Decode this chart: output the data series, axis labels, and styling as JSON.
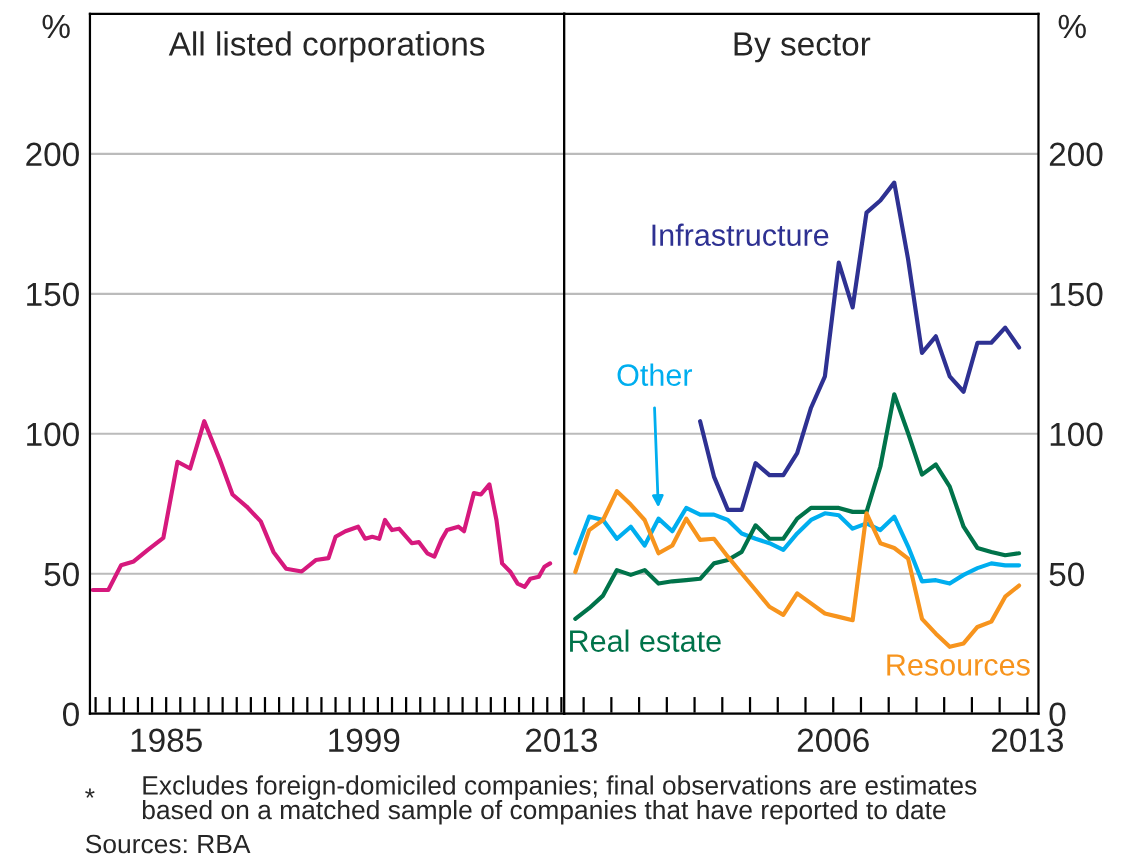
{
  "chart_data": [
    {
      "type": "line",
      "title": "All listed corporations",
      "ylabel": "%",
      "xlim": [
        1979.6,
        2013.2
      ],
      "ylim": [
        0,
        250
      ],
      "yticks": [
        0,
        50,
        100,
        150,
        200
      ],
      "xticks": [
        {
          "value": 1980,
          "label": null
        },
        {
          "value": 1981,
          "label": null
        },
        {
          "value": 1982,
          "label": null
        },
        {
          "value": 1983,
          "label": null
        },
        {
          "value": 1984,
          "label": null
        },
        {
          "value": 1985,
          "label": "1985"
        },
        {
          "value": 1986,
          "label": null
        },
        {
          "value": 1987,
          "label": null
        },
        {
          "value": 1988,
          "label": null
        },
        {
          "value": 1989,
          "label": null
        },
        {
          "value": 1990,
          "label": null
        },
        {
          "value": 1991,
          "label": null
        },
        {
          "value": 1992,
          "label": null
        },
        {
          "value": 1993,
          "label": null
        },
        {
          "value": 1994,
          "label": null
        },
        {
          "value": 1995,
          "label": null
        },
        {
          "value": 1996,
          "label": null
        },
        {
          "value": 1997,
          "label": null
        },
        {
          "value": 1998,
          "label": null
        },
        {
          "value": 1999,
          "label": "1999"
        },
        {
          "value": 2000,
          "label": null
        },
        {
          "value": 2001,
          "label": null
        },
        {
          "value": 2002,
          "label": null
        },
        {
          "value": 2003,
          "label": null
        },
        {
          "value": 2004,
          "label": null
        },
        {
          "value": 2005,
          "label": null
        },
        {
          "value": 2006,
          "label": null
        },
        {
          "value": 2007,
          "label": null
        },
        {
          "value": 2008,
          "label": null
        },
        {
          "value": 2009,
          "label": null
        },
        {
          "value": 2010,
          "label": null
        },
        {
          "value": 2011,
          "label": null
        },
        {
          "value": 2012,
          "label": null
        },
        {
          "value": 2013,
          "label": "2013"
        }
      ],
      "grid": "y",
      "legend": false,
      "annotations": [
        "*\tExcludes foreign-domiciled companies; final observations are estimates\n\tbased on a matched sample of companies that have reported to date",
        "Sources: RBA"
      ],
      "series": [
        {
          "color": "#d6197d",
          "x": [
            1979.8,
            1980.9,
            1981.8,
            1982.7,
            1983.7,
            1984.8,
            1985.8,
            1986.7,
            1987.7,
            1988.8,
            1989.7,
            1990.7,
            1991.7,
            1992.6,
            1993.5,
            1994.6,
            1995.6,
            1996.5,
            1997.0,
            1997.7,
            1998.6,
            1999.1,
            1999.6,
            2000.1,
            2000.5,
            2001.0,
            2001.5,
            2002.4,
            2002.9,
            2003.5,
            2004.0,
            2004.5,
            2004.9,
            2005.7,
            2006.1,
            2006.8,
            2007.3,
            2007.9,
            2008.4,
            2008.8,
            2009.4,
            2009.9,
            2010.4,
            2010.8,
            2011.4,
            2011.8,
            2012.2
          ],
          "values": [
            44.2,
            44.2,
            53,
            54.4,
            58.5,
            62.8,
            90,
            87.6,
            104.5,
            90.7,
            78.3,
            74,
            68.7,
            57.8,
            51.8,
            50.8,
            54.9,
            55.6,
            63.2,
            65.2,
            66.8,
            62.5,
            63.2,
            62.5,
            69.2,
            65.6,
            66.1,
            60.9,
            61.3,
            57.3,
            56.1,
            62.1,
            65.6,
            66.8,
            65.2,
            78.8,
            78.3,
            81.9,
            69.2,
            53.7,
            50.6,
            46.5,
            45.3,
            48.2,
            48.9,
            52.5,
            53.7
          ]
        }
      ]
    },
    {
      "type": "line",
      "title": "By sector",
      "ylabel": "%",
      "xlim": [
        1996.3,
        2013.4
      ],
      "ylim": [
        0,
        250
      ],
      "yticks": [
        0,
        50,
        100,
        150,
        200
      ],
      "xticks": [
        {
          "value": 1997,
          "label": null
        },
        {
          "value": 1998,
          "label": null
        },
        {
          "value": 1999,
          "label": null
        },
        {
          "value": 2000,
          "label": null
        },
        {
          "value": 2001,
          "label": null
        },
        {
          "value": 2002,
          "label": null
        },
        {
          "value": 2003,
          "label": null
        },
        {
          "value": 2004,
          "label": null
        },
        {
          "value": 2005,
          "label": null
        },
        {
          "value": 2006,
          "label": "2006"
        },
        {
          "value": 2007,
          "label": null
        },
        {
          "value": 2008,
          "label": null
        },
        {
          "value": 2009,
          "label": null
        },
        {
          "value": 2010,
          "label": null
        },
        {
          "value": 2011,
          "label": null
        },
        {
          "value": 2012,
          "label": null
        },
        {
          "value": 2013,
          "label": "2013"
        }
      ],
      "grid": "y",
      "legend": false,
      "series": [
        {
          "name": "Infrastructure",
          "color": "#2e3192",
          "x": [
            2001.2,
            2001.7,
            2002.2,
            2002.7,
            2003.2,
            2003.7,
            2004.2,
            2004.7,
            2005.2,
            2005.7,
            2006.2,
            2006.7,
            2007.2,
            2007.7,
            2008.2,
            2008.7,
            2009.2,
            2009.7,
            2010.2,
            2010.7,
            2011.2,
            2011.7,
            2012.2,
            2012.7
          ],
          "values": [
            104.5,
            84.7,
            72.8,
            72.8,
            89.5,
            85.2,
            85.2,
            93.1,
            109.3,
            120.5,
            161.1,
            145.1,
            179,
            183.3,
            189.7,
            162.3,
            128.9,
            134.8,
            120.5,
            115,
            132.5,
            132.5,
            137.9,
            130.8
          ]
        },
        {
          "name": "Other",
          "color": "#00aeef",
          "x": [
            1996.7,
            1997.2,
            1997.7,
            1998.2,
            1998.7,
            1999.2,
            1999.7,
            2000.2,
            2000.7,
            2001.2,
            2001.7,
            2002.2,
            2002.7,
            2003.2,
            2003.7,
            2004.2,
            2004.7,
            2005.2,
            2005.7,
            2006.2,
            2006.7,
            2007.2,
            2007.7,
            2008.2,
            2008.7,
            2009.2,
            2009.7,
            2010.2,
            2010.7,
            2011.2,
            2011.7,
            2012.2,
            2012.7
          ],
          "values": [
            57.3,
            70.4,
            69.2,
            62.5,
            66.8,
            60.1,
            69.7,
            65.2,
            73.5,
            71.1,
            71.1,
            69.2,
            64.4,
            62.5,
            60.9,
            58.5,
            64.4,
            69.2,
            71.6,
            70.9,
            66.1,
            68,
            65.6,
            70.4,
            59.7,
            47.3,
            47.7,
            46.5,
            49.6,
            52,
            53.7,
            53,
            53
          ]
        },
        {
          "name": "Real estate",
          "color": "#00734a",
          "x": [
            1996.7,
            1997.2,
            1997.7,
            1998.2,
            1998.7,
            1999.2,
            1999.7,
            2000.2,
            2000.7,
            2001.2,
            2001.7,
            2002.2,
            2002.7,
            2003.2,
            2003.7,
            2004.2,
            2004.7,
            2005.2,
            2005.7,
            2006.2,
            2006.7,
            2007.2,
            2007.7,
            2008.2,
            2008.7,
            2009.2,
            2009.7,
            2010.2,
            2010.7,
            2011.2,
            2011.7,
            2012.2,
            2012.7
          ],
          "values": [
            33.9,
            37.7,
            42.2,
            51.3,
            49.6,
            51.3,
            46.5,
            47.3,
            47.7,
            48.2,
            53.7,
            54.9,
            57.8,
            67.3,
            62.5,
            62.5,
            69.7,
            73.5,
            73.5,
            73.5,
            72.1,
            72.1,
            88.3,
            114.1,
            100.2,
            85.4,
            89,
            81.1,
            66.8,
            59.2,
            57.8,
            56.6,
            57.3
          ]
        },
        {
          "name": "Resources",
          "color": "#f7941d",
          "x": [
            1996.7,
            1997.2,
            1997.7,
            1998.2,
            1998.7,
            1999.2,
            1999.7,
            2000.2,
            2000.7,
            2001.2,
            2001.7,
            2002.2,
            2002.7,
            2003.2,
            2003.7,
            2004.2,
            2004.7,
            2005.2,
            2005.7,
            2006.2,
            2006.7,
            2007.2,
            2007.7,
            2008.2,
            2008.7,
            2009.2,
            2009.7,
            2010.2,
            2010.7,
            2011.2,
            2011.7,
            2012.2,
            2012.7
          ],
          "values": [
            50.6,
            65.6,
            69.2,
            79.5,
            74.7,
            69.2,
            57.3,
            60.1,
            69.7,
            62.1,
            62.5,
            56.1,
            50.1,
            44.2,
            38.2,
            35.3,
            43,
            39.4,
            35.8,
            34.6,
            33.4,
            71.6,
            60.9,
            59.2,
            55.4,
            33.9,
            28.6,
            23.9,
            25.1,
            31,
            32.9,
            41.8,
            45.8
          ]
        }
      ]
    }
  ]
}
